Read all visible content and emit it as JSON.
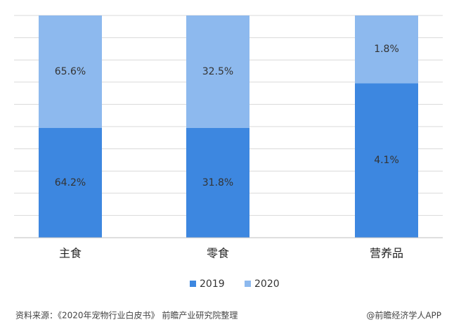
{
  "chart_data": {
    "type": "bar",
    "stacked": "percent",
    "categories": [
      "主食",
      "零食",
      "营养品"
    ],
    "series": [
      {
        "name": "2019",
        "color": "#3d87e0",
        "values": [
          64.2,
          31.8,
          4.1
        ],
        "value_labels": [
          "64.2%",
          "31.8%",
          "4.1%"
        ]
      },
      {
        "name": "2020",
        "color": "#8db9ee",
        "values": [
          65.6,
          32.5,
          1.8
        ],
        "value_labels": [
          "65.6%",
          "32.5%",
          "1.8%"
        ]
      }
    ],
    "grid": true,
    "legend": "bottom",
    "source": "资料来源：《2020年宠物行业白皮书》 前瞻产业研究院整理",
    "credit": "@前瞻经济学人APP"
  }
}
